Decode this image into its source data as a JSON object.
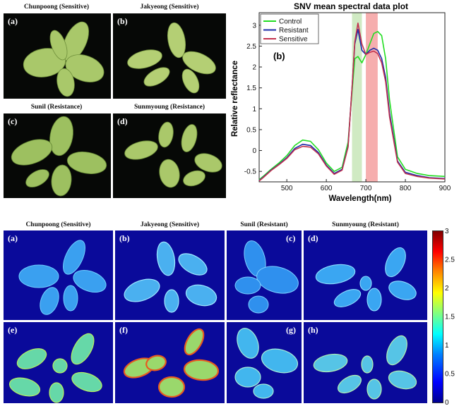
{
  "top_photos": {
    "captions": [
      "Chunpoong (Sensitive)",
      "Jakyeong (Sensitive)",
      "Sunil (Resistance)",
      "Sunmyoung (Resistance)"
    ],
    "labels": [
      "(a)",
      "(b)",
      "(c)",
      "(d)"
    ]
  },
  "heatmaps": {
    "captions": [
      "Chunpoong (Sensitive)",
      "Jakyeong (Sensitive)",
      "Sunil (Resistant)",
      "Sunmyoung (Resistant)"
    ],
    "labels": [
      "(a)",
      "(b)",
      "(c)",
      "(d)",
      "(e)",
      "(f)",
      "(g)",
      "(h)"
    ],
    "colorbar_ticks": [
      "3",
      "2.5",
      "2",
      "1.5",
      "1",
      "0.5",
      "0"
    ]
  },
  "chart_data": {
    "type": "line",
    "title": "SNV mean spectral data plot",
    "panel_label": "(b)",
    "xlabel": "Wavelength(nm)",
    "ylabel": "Relative reflectance",
    "xlim": [
      430,
      900
    ],
    "ylim": [
      -0.75,
      3.3
    ],
    "xticks": [
      500,
      600,
      700,
      800,
      900
    ],
    "yticks": [
      -0.5,
      0,
      0.5,
      1,
      1.5,
      2,
      2.5,
      3
    ],
    "legend_position": "top-left",
    "highlight_bands": [
      {
        "from": 665,
        "to": 690,
        "color": "#c8e6b8"
      },
      {
        "from": 700,
        "to": 730,
        "color": "#f5a0a0"
      }
    ],
    "x": [
      430,
      440,
      460,
      480,
      500,
      520,
      540,
      560,
      580,
      600,
      620,
      640,
      655,
      665,
      672,
      680,
      690,
      700,
      710,
      720,
      730,
      740,
      750,
      760,
      780,
      800,
      830,
      860,
      900
    ],
    "series": [
      {
        "name": "Control",
        "color": "#22dd22",
        "values": [
          -0.7,
          -0.62,
          -0.45,
          -0.3,
          -0.12,
          0.12,
          0.25,
          0.22,
          0.02,
          -0.3,
          -0.5,
          -0.4,
          0.2,
          1.4,
          2.2,
          2.25,
          2.1,
          2.3,
          2.55,
          2.8,
          2.85,
          2.75,
          2.2,
          1.2,
          -0.15,
          -0.45,
          -0.55,
          -0.6,
          -0.62
        ]
      },
      {
        "name": "Resistant",
        "color": "#1a2aa8",
        "values": [
          -0.72,
          -0.64,
          -0.47,
          -0.33,
          -0.17,
          0.05,
          0.15,
          0.12,
          -0.05,
          -0.35,
          -0.55,
          -0.45,
          0.1,
          1.5,
          2.55,
          2.9,
          2.4,
          2.3,
          2.4,
          2.45,
          2.4,
          2.2,
          1.75,
          0.9,
          -0.25,
          -0.52,
          -0.6,
          -0.65,
          -0.67
        ]
      },
      {
        "name": "Sensitive",
        "color": "#c2324e",
        "values": [
          -0.73,
          -0.65,
          -0.48,
          -0.34,
          -0.19,
          0.02,
          0.1,
          0.08,
          -0.08,
          -0.37,
          -0.57,
          -0.47,
          0.08,
          1.5,
          2.6,
          3.05,
          2.55,
          2.3,
          2.35,
          2.38,
          2.32,
          2.1,
          1.65,
          0.8,
          -0.28,
          -0.55,
          -0.62,
          -0.66,
          -0.68
        ]
      }
    ]
  }
}
